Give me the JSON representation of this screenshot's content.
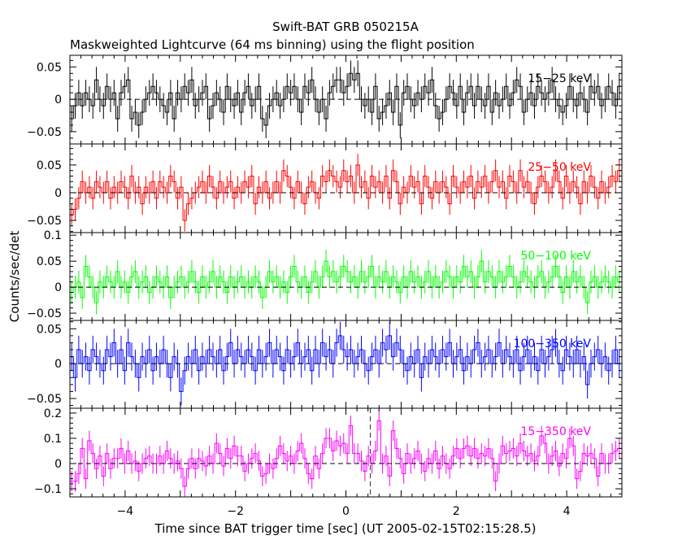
{
  "chart_data": {
    "type": "line",
    "title": "Swift-BAT GRB 050215A",
    "subtitle": "Maskweighted Lightcurve (64 ms binning) using the flight position",
    "xlabel": "Time since BAT trigger time [sec] (UT 2005-02-15T02:15:28.5)",
    "ylabel": "Counts/sec/det",
    "xlim": [
      -5,
      5
    ],
    "bin_width": 0.064,
    "x_start": -5,
    "xticks": [
      -4,
      -2,
      0,
      2,
      4
    ],
    "xtick_labels": [
      "−4",
      "−2",
      "0",
      "2",
      "4"
    ],
    "marker_line_x": 0.44,
    "panels": [
      {
        "name": "15-25 keV",
        "label": "15−25 keV",
        "color": "#000000",
        "ylim": [
          -0.069,
          0.068
        ],
        "yticks": [
          -0.05,
          0,
          0.05
        ],
        "ytick_labels": [
          "−0.05",
          "0",
          "0.05"
        ],
        "ymajor": 0.05,
        "yminor": 0.01,
        "error": 0.02,
        "values": [
          -0.03,
          -0.01,
          0.01,
          -0.01,
          0.01,
          0.0,
          -0.01,
          0.03,
          0.0,
          -0.01,
          0.02,
          0.0,
          0.01,
          -0.03,
          0.01,
          0.02,
          0.03,
          -0.03,
          -0.02,
          -0.04,
          -0.02,
          0.0,
          0.01,
          0.02,
          0.01,
          0.0,
          -0.01,
          -0.02,
          0.01,
          -0.03,
          0.01,
          0.0,
          0.02,
          0.01,
          0.03,
          -0.01,
          0.0,
          0.01,
          0.02,
          -0.03,
          -0.01,
          0.01,
          0.0,
          -0.02,
          0.02,
          0.0,
          -0.01,
          0.01,
          -0.02,
          0.01,
          0.02,
          -0.01,
          0.0,
          0.02,
          -0.03,
          -0.04,
          -0.01,
          0.0,
          0.01,
          -0.01,
          0.0,
          0.02,
          0.01,
          0.02,
          0.0,
          -0.02,
          0.02,
          0.01,
          0.03,
          0.0,
          -0.02,
          0.0,
          -0.03,
          0.01,
          0.02,
          0.03,
          0.03,
          0.01,
          0.02,
          0.04,
          0.03,
          0.04,
          0.0,
          -0.01,
          0.0,
          -0.02,
          0.02,
          -0.03,
          -0.02,
          -0.01,
          0.01,
          -0.02,
          0.02,
          -0.04,
          0.01,
          0.02,
          0.0,
          -0.01,
          0.01,
          0.0,
          0.02,
          0.01,
          0.03,
          -0.01,
          -0.03,
          -0.02,
          0.0,
          0.02,
          0.01,
          -0.01,
          0.02,
          -0.02,
          0.01,
          0.02,
          -0.01,
          0.02,
          0.0,
          -0.01,
          0.02,
          -0.02,
          0.01,
          -0.01,
          0.0,
          0.02,
          -0.01,
          0.01,
          0.03,
          0.02,
          -0.02,
          0.0,
          0.01,
          -0.01,
          0.02,
          0.01,
          0.0,
          0.01,
          0.03,
          0.0,
          -0.01,
          -0.02,
          -0.01,
          0.02,
          0.0,
          -0.01,
          0.01,
          0.0,
          -0.02,
          0.02,
          0.01,
          0.02,
          -0.01,
          0.0,
          0.02,
          0.01,
          -0.01,
          0.02
        ]
      },
      {
        "name": "25-50 keV",
        "label": "25−50 keV",
        "color": "#ff0000",
        "ylim": [
          -0.072,
          0.088
        ],
        "yticks": [
          -0.05,
          0,
          0.05
        ],
        "ytick_labels": [
          "−0.05",
          "0",
          "0.05"
        ],
        "ymajor": 0.05,
        "yminor": 0.01,
        "error": 0.02,
        "values": [
          -0.04,
          -0.03,
          -0.01,
          0.02,
          0.0,
          0.01,
          -0.01,
          0.02,
          0.01,
          0.0,
          0.02,
          -0.01,
          0.01,
          0.0,
          0.02,
          0.01,
          -0.01,
          0.03,
          0.0,
          0.01,
          -0.02,
          0.01,
          0.0,
          0.02,
          -0.01,
          0.02,
          0.01,
          0.0,
          0.03,
          0.02,
          -0.01,
          0.01,
          -0.05,
          -0.02,
          -0.01,
          0.0,
          0.01,
          0.02,
          0.0,
          0.03,
          0.01,
          -0.01,
          0.02,
          0.0,
          0.01,
          0.02,
          -0.01,
          0.01,
          0.0,
          0.02,
          0.01,
          0.03,
          -0.02,
          0.01,
          0.0,
          0.02,
          -0.01,
          0.0,
          0.02,
          0.0,
          0.04,
          0.03,
          0.01,
          -0.01,
          0.02,
          0.0,
          -0.02,
          0.01,
          0.02,
          0.0,
          -0.01,
          0.03,
          0.02,
          0.04,
          0.03,
          0.02,
          0.01,
          0.04,
          0.02,
          0.03,
          0.0,
          0.05,
          0.01,
          0.02,
          -0.01,
          0.03,
          0.01,
          0.02,
          0.0,
          0.03,
          -0.01,
          0.04,
          0.02,
          -0.02,
          0.01,
          0.0,
          0.03,
          0.01,
          0.02,
          -0.02,
          0.03,
          0.01,
          -0.01,
          0.02,
          0.0,
          0.02,
          0.01,
          -0.02,
          0.03,
          0.01,
          0.0,
          0.02,
          0.01,
          0.03,
          -0.01,
          0.02,
          0.01,
          0.03,
          0.0,
          0.02,
          0.04,
          0.01,
          0.02,
          -0.01,
          0.03,
          0.02,
          0.0,
          0.04,
          0.01,
          0.02,
          0.0,
          -0.02,
          0.01,
          0.03,
          0.02,
          0.0,
          0.01,
          0.04,
          0.02,
          -0.01,
          0.03,
          0.0,
          0.02,
          0.01,
          -0.02,
          0.02,
          0.0,
          0.03,
          0.01,
          -0.01,
          0.02,
          0.0,
          0.01,
          0.03,
          0.02,
          0.04
        ]
      },
      {
        "name": "50-100 keV",
        "label": "50−100 keV",
        "color": "#00ff00",
        "ylim": [
          -0.064,
          0.105
        ],
        "yticks": [
          -0.05,
          0,
          0.05,
          0.1
        ],
        "ytick_labels": [
          "−0.05",
          "0",
          "0.05",
          "0.1"
        ],
        "ymajor": 0.05,
        "yminor": 0.01,
        "error": 0.022,
        "values": [
          -0.01,
          0.0,
          0.01,
          -0.02,
          0.04,
          0.02,
          0.0,
          -0.03,
          0.01,
          0.0,
          0.02,
          0.01,
          0.0,
          0.03,
          0.0,
          0.01,
          -0.01,
          0.02,
          0.03,
          0.0,
          0.01,
          0.02,
          -0.01,
          0.0,
          0.02,
          0.01,
          0.0,
          0.02,
          -0.02,
          0.0,
          0.01,
          0.02,
          0.0,
          0.01,
          0.03,
          0.01,
          -0.01,
          0.02,
          0.0,
          0.01,
          0.03,
          0.0,
          0.02,
          0.01,
          -0.01,
          0.02,
          0.0,
          0.01,
          0.02,
          0.0,
          0.01,
          0.0,
          0.02,
          0.01,
          -0.02,
          0.0,
          0.03,
          0.01,
          0.02,
          0.0,
          0.01,
          -0.01,
          0.02,
          0.04,
          0.01,
          0.0,
          0.02,
          -0.01,
          0.01,
          0.03,
          0.0,
          0.02,
          0.05,
          0.02,
          0.03,
          0.01,
          0.02,
          0.04,
          0.03,
          0.01,
          0.02,
          0.0,
          0.03,
          0.01,
          0.02,
          0.04,
          0.0,
          0.02,
          0.01,
          0.03,
          0.0,
          0.02,
          0.01,
          -0.01,
          0.02,
          0.0,
          0.03,
          0.01,
          0.02,
          0.0,
          0.01,
          0.03,
          0.0,
          0.02,
          0.0,
          0.01,
          0.03,
          0.02,
          0.0,
          0.02,
          0.01,
          0.04,
          0.02,
          0.03,
          0.0,
          0.02,
          0.05,
          0.01,
          0.03,
          0.02,
          0.0,
          0.03,
          0.01,
          0.02,
          0.04,
          0.02,
          0.0,
          0.01,
          0.03,
          0.02,
          0.01,
          0.0,
          0.02,
          0.03,
          0.0,
          0.01,
          0.02,
          0.04,
          0.02,
          -0.01,
          0.02,
          0.0,
          0.03,
          0.01,
          0.02,
          0.0,
          -0.03,
          0.01,
          0.02,
          0.0,
          0.01,
          0.02,
          0.01,
          0.0,
          0.02,
          0.01
        ]
      },
      {
        "name": "100-350 keV",
        "label": "100−350 keV",
        "color": "#0000ff",
        "ylim": [
          -0.064,
          0.062
        ],
        "yticks": [
          -0.05,
          0,
          0.05
        ],
        "ytick_labels": [
          "−0.05",
          "0",
          "0.05"
        ],
        "ymajor": 0.05,
        "yminor": 0.01,
        "error": 0.02,
        "values": [
          0.01,
          -0.02,
          0.02,
          0.0,
          0.01,
          -0.01,
          0.02,
          0.01,
          0.0,
          -0.01,
          0.02,
          0.01,
          0.03,
          0.0,
          0.02,
          -0.01,
          0.03,
          0.01,
          0.0,
          -0.02,
          0.01,
          0.0,
          0.02,
          -0.01,
          0.01,
          0.0,
          0.02,
          0.0,
          -0.02,
          0.01,
          0.0,
          -0.04,
          -0.01,
          0.01,
          0.0,
          0.02,
          -0.01,
          0.01,
          0.0,
          0.02,
          0.01,
          0.0,
          0.02,
          -0.01,
          0.01,
          0.03,
          0.0,
          0.02,
          0.01,
          0.0,
          0.02,
          0.01,
          -0.01,
          0.02,
          0.0,
          0.01,
          0.03,
          0.0,
          0.02,
          0.01,
          -0.01,
          0.02,
          0.0,
          0.01,
          0.03,
          0.0,
          0.01,
          0.02,
          -0.01,
          0.02,
          0.0,
          0.03,
          0.01,
          0.02,
          0.0,
          0.03,
          0.04,
          0.02,
          0.01,
          0.02,
          0.0,
          0.01,
          0.02,
          0.0,
          -0.01,
          0.01,
          0.02,
          0.0,
          0.03,
          0.02,
          0.04,
          0.01,
          0.03,
          0.02,
          0.0,
          -0.01,
          0.01,
          0.0,
          0.02,
          -0.02,
          0.01,
          0.0,
          0.02,
          0.01,
          0.0,
          0.02,
          0.01,
          0.03,
          0.0,
          0.01,
          0.02,
          -0.01,
          0.01,
          0.0,
          0.02,
          0.03,
          0.0,
          0.01,
          0.02,
          0.0,
          0.01,
          0.03,
          0.0,
          0.02,
          0.01,
          0.0,
          0.02,
          -0.01,
          0.01,
          0.02,
          0.0,
          0.01,
          -0.01,
          0.02,
          0.0,
          0.01,
          0.02,
          0.03,
          0.0,
          -0.01,
          0.02,
          0.01,
          0.0,
          0.02,
          0.0,
          0.01,
          -0.03,
          0.0,
          0.01,
          0.02,
          0.0,
          0.01,
          -0.01,
          0.0,
          0.02,
          0.0
        ]
      },
      {
        "name": "15-350 keV",
        "label": "15−350 keV",
        "color": "#ff00ff",
        "ylim": [
          -0.132,
          0.219
        ],
        "yticks": [
          -0.1,
          0,
          0.1,
          0.2
        ],
        "ytick_labels": [
          "−0.1",
          "0",
          "0.1",
          "0.2"
        ],
        "ymajor": 0.1,
        "yminor": 0.02,
        "error": 0.04,
        "values": [
          -0.07,
          -0.07,
          -0.04,
          0.06,
          -0.06,
          0.09,
          0.04,
          -0.02,
          0.03,
          -0.05,
          0.04,
          -0.02,
          0.02,
          0.02,
          0.06,
          0.0,
          0.05,
          0.0,
          0.01,
          -0.03,
          0.0,
          0.02,
          0.03,
          0.0,
          0.0,
          0.03,
          0.0,
          0.05,
          0.02,
          0.0,
          0.01,
          -0.02,
          -0.09,
          -0.02,
          0.02,
          -0.02,
          0.02,
          0.01,
          -0.01,
          0.03,
          0.0,
          0.08,
          0.04,
          -0.01,
          0.06,
          0.02,
          0.07,
          0.03,
          0.03,
          -0.03,
          0.0,
          0.02,
          0.04,
          0.01,
          -0.05,
          -0.04,
          0.0,
          -0.02,
          0.02,
          0.07,
          0.04,
          0.01,
          0.03,
          0.0,
          0.05,
          0.08,
          0.02,
          -0.04,
          -0.06,
          0.03,
          -0.02,
          0.04,
          0.1,
          0.1,
          0.05,
          0.09,
          0.07,
          0.08,
          0.04,
          0.15,
          0.04,
          0.04,
          0.01,
          -0.03,
          0.03,
          0.0,
          0.05,
          0.17,
          0.0,
          0.03,
          -0.05,
          0.13,
          0.06,
          0.02,
          -0.04,
          0.04,
          0.0,
          0.02,
          0.05,
          0.0,
          -0.03,
          0.02,
          0.0,
          0.05,
          -0.02,
          0.03,
          0.0,
          -0.02,
          0.03,
          0.06,
          0.02,
          0.06,
          0.07,
          0.03,
          0.06,
          0.02,
          0.04,
          0.03,
          0.06,
          0.02,
          -0.07,
          0.0,
          0.07,
          0.04,
          0.05,
          0.06,
          0.03,
          0.08,
          0.05,
          0.03,
          0.04,
          0.01,
          0.03,
          0.11,
          0.08,
          0.0,
          0.03,
          0.05,
          -0.01,
          0.04,
          0.02,
          0.1,
          0.07,
          -0.06,
          -0.03,
          0.04,
          0.03,
          0.04,
          0.02,
          -0.05,
          0.04,
          0.0,
          0.0,
          0.04,
          0.05,
          0.06
        ]
      }
    ]
  }
}
